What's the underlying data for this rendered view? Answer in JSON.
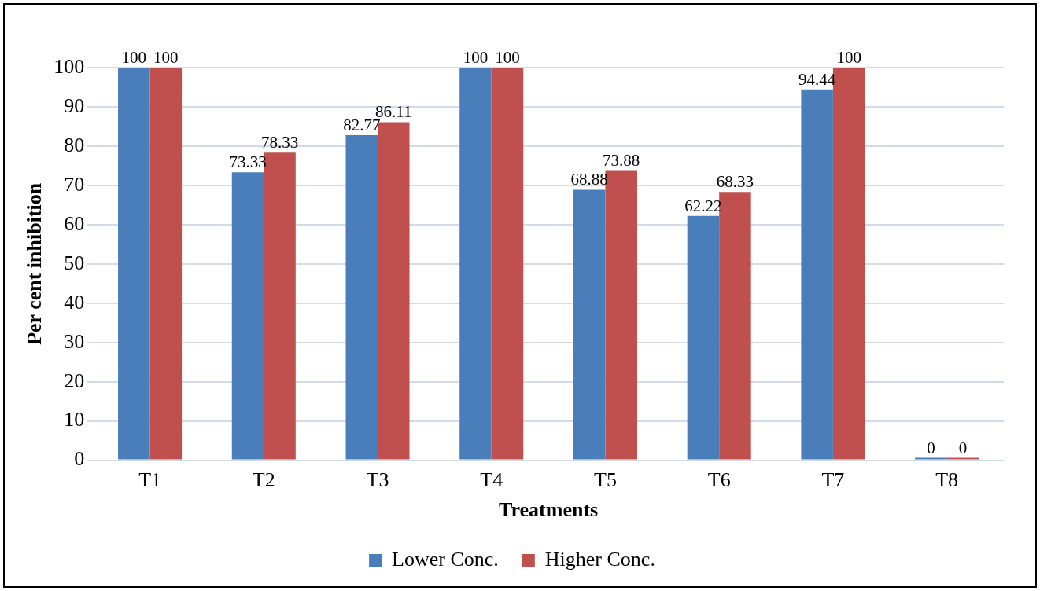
{
  "chart_data": {
    "type": "bar",
    "xlabel": "Treatments",
    "ylabel": "Per cent inhibition",
    "categories": [
      "T1",
      "T2",
      "T3",
      "T4",
      "T5",
      "T6",
      "T7",
      "T8"
    ],
    "series": [
      {
        "name": "Lower Conc.",
        "color": "#4a7ebb",
        "values": [
          100,
          73.33,
          82.77,
          100,
          68.88,
          62.22,
          94.44,
          0
        ]
      },
      {
        "name": "Higher Conc.",
        "color": "#c0504d",
        "values": [
          100,
          78.33,
          86.11,
          100,
          73.88,
          68.33,
          100,
          0
        ]
      }
    ],
    "ylim": [
      0,
      100
    ],
    "yticks": [
      0,
      10,
      20,
      30,
      40,
      50,
      60,
      70,
      80,
      90,
      100
    ],
    "grid": "y",
    "legend": "bottom",
    "data_labels": true
  }
}
